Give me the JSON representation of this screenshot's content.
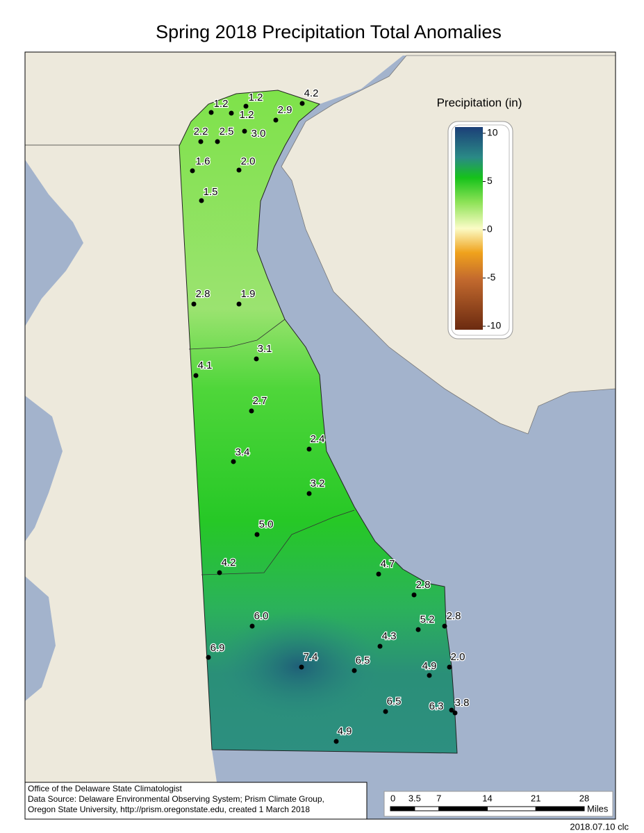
{
  "title": "Spring 2018 Precipitation Total Anomalies",
  "legend": {
    "title": "Precipitation (in)",
    "ticks": [
      10,
      5,
      0,
      -5,
      -10
    ]
  },
  "stations": [
    "1.2",
    "1.2",
    "1.2",
    "4.2",
    "2.9",
    "2.2",
    "2.5",
    "3.0",
    "1.6",
    "2.0",
    "1.5",
    "2.8",
    "1.9",
    "3.1",
    "4.1",
    "2.7",
    "2.4",
    "3.4",
    "3.2",
    "5.0",
    "4.2",
    "4.7",
    "2.8",
    "6.0",
    "5.2",
    "2.8",
    "4.3",
    "6.9",
    "7.4",
    "6.5",
    "2.0",
    "4.9",
    "6.5",
    "6.3",
    "3.8",
    "4.9"
  ],
  "credits": [
    "Office of the Delaware State Climatologist",
    "Data Source: Delaware Environmental Observing System; Prism Climate Group,",
    "Oregon State University, http://prism.oregonstate.edu, created 1 March 2018"
  ],
  "scale": {
    "ticks": [
      0,
      3.5,
      7,
      14,
      21,
      28
    ],
    "unit": "Miles"
  },
  "stamp": "2018.07.10 clc"
}
